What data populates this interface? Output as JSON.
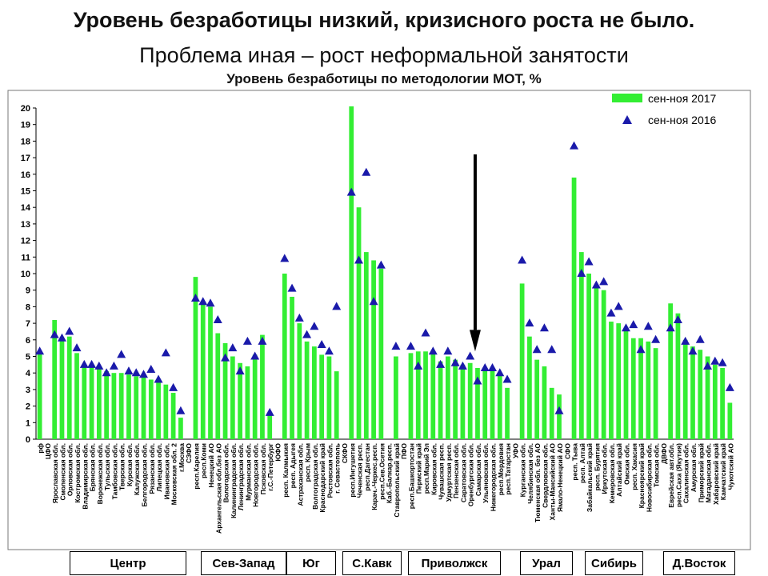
{
  "title": "Уровень безработицы низкий, кризисного роста не было.",
  "subtitle": "Проблема иная – рост неформальной занятости",
  "chart_data": {
    "type": "bar",
    "title": "Уровень безработицы по методологии МОТ, %",
    "ylim": [
      0,
      20
    ],
    "yticks": [
      0,
      1,
      2,
      3,
      4,
      5,
      6,
      7,
      8,
      9,
      10,
      11,
      12,
      13,
      14,
      15,
      16,
      17,
      18,
      19,
      20
    ],
    "legend": {
      "position": "top-right",
      "bar_label": "сен-ноя 2017",
      "marker_label": "сен-ноя 2016"
    },
    "colors": {
      "bar": "#33ee33",
      "marker": "#1a1aaa"
    },
    "categories": [
      "рф",
      "ЦФО",
      "Ярославская обл.",
      "Смоленская обл.",
      "Орловская обл.",
      "Костромская обл.",
      "Владимирская обл.",
      "Брянская обл.",
      "Воронежская обл.",
      "Тульская обл.",
      "Тамбовская обл.",
      "Тверская обл.",
      "Курская обл.",
      "Калужская обл.",
      "Белгородская обл.",
      "Рязанская обл.",
      "Липецкая обл.",
      "Ивановская обл.",
      "Московская обл. 2",
      "г.Москва",
      "СЗФО",
      "респ.Карелия",
      "респ.Коми",
      "Ненецкий АО",
      "Архангельская обл.без АО",
      "Вологодская обл.",
      "Калининградская обл.",
      "Ленинградская обл.",
      "Мурманская обл.",
      "Новгородская обл.",
      "Псковская обл.",
      "г.С.-Петербург",
      "ЮФО",
      "респ. Калмыкия",
      "респ. Адыгея",
      "Астраханская обл.",
      "респ. Крым",
      "Волгоградская обл.",
      "Краснодарский край",
      "Ростовская обл.",
      "г. Севастополь",
      "СКФО",
      "респ.Ингушетия",
      "Чеченская респ.",
      "респ.Дагестан",
      "Карач.-Черкес.респ.",
      "респ.Сев.Осетия",
      "Каб.-Балкар.респ.",
      "Ставропольский край",
      "ПФО",
      "респ.Башкортостан",
      "Пермский край",
      "респ.Марий Эл",
      "Кировская обл.",
      "Чувашская респ.",
      "Удмуртская респ.",
      "Пензенская обл.",
      "Саратовская обл.",
      "Оренбургская обл.",
      "Самарская обл.",
      "Ульяновская обл.",
      "Нижегородская обл.",
      "респ.Мордовия",
      "респ.Татарстан",
      "УФО",
      "Курганская обл.",
      "Челябинская обл.",
      "Тюменская обл. без АО",
      "Свердловская обл.",
      "Ханты-Мансийский АО",
      "Ямало-Ненецкий АО",
      "СФО",
      "респ. Тыва",
      "респ. Алтай",
      "Забайкальский край",
      "респ. Бурятия",
      "Иркутская обл.",
      "Кемеровская обл.",
      "Алтайский край",
      "Омская обл.",
      "респ. Хакасия",
      "Красноярский край",
      "Новосибирская обл.",
      "Томская обл.",
      "ДВФО",
      "Еврейская авт.обл.",
      "респ.Саха (Якутия)",
      "Сахалинская обл.",
      "Амурская обл.",
      "Приморский край",
      "Магаданская обл.",
      "Хабаровский край",
      "Камчатский край",
      "Чукотский АО"
    ],
    "series": [
      {
        "name": "сен-ноя 2017",
        "values": [
          5.2,
          null,
          7.2,
          6.0,
          6.2,
          5.2,
          4.4,
          4.4,
          4.3,
          4.1,
          4.0,
          4.0,
          3.9,
          3.8,
          3.8,
          3.6,
          3.5,
          3.3,
          2.8,
          1.3,
          null,
          9.8,
          8.3,
          8.0,
          6.4,
          5.8,
          5.0,
          4.6,
          4.4,
          5.1,
          6.3,
          1.5,
          null,
          10.0,
          8.6,
          7.0,
          5.9,
          5.6,
          5.1,
          5.0,
          4.1,
          null,
          20.1,
          14.0,
          11.3,
          10.8,
          10.3,
          null,
          5.0,
          null,
          5.2,
          5.3,
          5.3,
          5.2,
          4.7,
          5.0,
          4.8,
          4.5,
          4.6,
          4.3,
          4.3,
          4.2,
          4.0,
          3.1,
          null,
          9.4,
          6.2,
          4.8,
          4.4,
          3.1,
          2.7,
          null,
          15.8,
          11.3,
          10.0,
          9.3,
          9.0,
          7.1,
          7.0,
          6.6,
          6.1,
          6.1,
          5.9,
          5.5,
          null,
          8.2,
          7.6,
          6.0,
          5.6,
          5.4,
          5.0,
          4.5,
          4.3,
          2.2
        ]
      },
      {
        "name": "сен-ноя 2016",
        "values": [
          5.3,
          null,
          6.3,
          6.1,
          6.5,
          5.5,
          4.5,
          4.5,
          4.4,
          4.0,
          4.4,
          5.1,
          4.1,
          4.0,
          3.9,
          4.2,
          3.6,
          5.2,
          3.1,
          1.7,
          null,
          8.5,
          8.3,
          8.2,
          7.2,
          4.9,
          5.5,
          4.1,
          5.9,
          5.0,
          5.9,
          1.6,
          null,
          10.9,
          9.1,
          7.3,
          6.3,
          6.8,
          5.7,
          5.3,
          8.0,
          null,
          14.9,
          10.8,
          16.1,
          8.3,
          10.5,
          null,
          5.6,
          null,
          5.6,
          4.4,
          6.4,
          5.3,
          4.5,
          5.3,
          4.6,
          4.4,
          5.0,
          3.5,
          4.3,
          4.3,
          4.0,
          3.6,
          null,
          10.8,
          7.0,
          5.4,
          6.7,
          5.4,
          1.7,
          null,
          17.7,
          10.0,
          10.7,
          9.3,
          9.5,
          7.6,
          8.0,
          6.7,
          6.9,
          5.4,
          6.8,
          6.0,
          null,
          6.7,
          7.2,
          5.9,
          5.3,
          6.0,
          4.4,
          4.7,
          4.6,
          3.1
        ]
      }
    ],
    "region_labels": [
      "Центр",
      "Сев-Запад",
      "Юг",
      "С.Кавк",
      "Приволжск",
      "Урал",
      "Сибирь",
      "Д.Восток"
    ],
    "annotation": "arrow pointing to Самарская обл."
  }
}
